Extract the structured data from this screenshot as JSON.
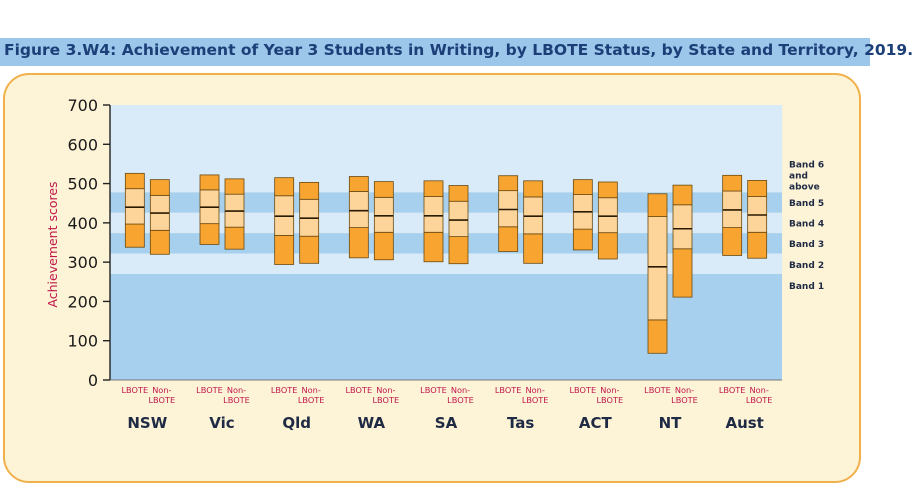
{
  "title": "Figure 3.W4: Achievement of Year 3 Students in Writing, by LBOTE Status, by State and Territory, 2019.",
  "colors": {
    "title_bar": "#9cc6ea",
    "title_text": "#1c3f78",
    "panel_bg": "#fdf3d6",
    "panel_border": "#f0b14a",
    "band_light": "#d9ebf8",
    "band_dark": "#a6d0ee",
    "box_dark": "#f7a431",
    "box_light": "#fdd49a",
    "box_edge": "#6b4a10",
    "group_label": "#1f2a44",
    "lbote_label": "#c0154a",
    "ylabel_color": "#c0154a"
  },
  "chart_data": {
    "type": "box",
    "title": "Figure 3.W4: Achievement of Year 3 Students in Writing, by LBOTE Status, by State and Territory, 2019.",
    "ylabel": "Achievement scores",
    "ylim": [
      0,
      700
    ],
    "yticks": [
      0,
      100,
      200,
      300,
      400,
      500,
      600,
      700
    ],
    "bands": [
      {
        "label": "Band 1",
        "from": 0,
        "to": 270,
        "shade": "dark"
      },
      {
        "label": "Band 2",
        "from": 270,
        "to": 322,
        "shade": "light"
      },
      {
        "label": "Band 3",
        "from": 322,
        "to": 374,
        "shade": "dark"
      },
      {
        "label": "Band 4",
        "from": 374,
        "to": 426,
        "shade": "light"
      },
      {
        "label": "Band 5",
        "from": 426,
        "to": 478,
        "shade": "dark"
      },
      {
        "label": "Band 6 and above",
        "from": 478,
        "to": 700,
        "shade": "light"
      }
    ],
    "band_labels": [
      {
        "lines": [
          "Band 6",
          "and",
          "above"
        ],
        "value": 522
      },
      {
        "lines": [
          "Band 5"
        ],
        "value": 452
      },
      {
        "lines": [
          "Band 4"
        ],
        "value": 400
      },
      {
        "lines": [
          "Band 3"
        ],
        "value": 348
      },
      {
        "lines": [
          "Band 2"
        ],
        "value": 294
      },
      {
        "lines": [
          "Band 1"
        ],
        "value": 241
      }
    ],
    "series_labels": {
      "lbote": [
        "LBOTE"
      ],
      "non_lbote": [
        "Non-",
        "LBOTE"
      ]
    },
    "groups": [
      {
        "name": "NSW",
        "lbote": {
          "p10": 338,
          "p25": 397,
          "median": 440,
          "p75": 487,
          "p90": 526
        },
        "non_lbote": {
          "p10": 320,
          "p25": 381,
          "median": 425,
          "p75": 470,
          "p90": 510
        }
      },
      {
        "name": "Vic",
        "lbote": {
          "p10": 345,
          "p25": 398,
          "median": 440,
          "p75": 484,
          "p90": 522
        },
        "non_lbote": {
          "p10": 333,
          "p25": 389,
          "median": 430,
          "p75": 473,
          "p90": 512
        }
      },
      {
        "name": "Qld",
        "lbote": {
          "p10": 294,
          "p25": 368,
          "median": 417,
          "p75": 469,
          "p90": 515
        },
        "non_lbote": {
          "p10": 297,
          "p25": 366,
          "median": 412,
          "p75": 460,
          "p90": 503
        }
      },
      {
        "name": "WA",
        "lbote": {
          "p10": 311,
          "p25": 388,
          "median": 431,
          "p75": 480,
          "p90": 518
        },
        "non_lbote": {
          "p10": 306,
          "p25": 376,
          "median": 418,
          "p75": 465,
          "p90": 505
        }
      },
      {
        "name": "SA",
        "lbote": {
          "p10": 301,
          "p25": 376,
          "median": 418,
          "p75": 467,
          "p90": 507
        },
        "non_lbote": {
          "p10": 296,
          "p25": 365,
          "median": 407,
          "p75": 455,
          "p90": 495
        }
      },
      {
        "name": "Tas",
        "lbote": {
          "p10": 327,
          "p25": 390,
          "median": 434,
          "p75": 482,
          "p90": 520
        },
        "non_lbote": {
          "p10": 297,
          "p25": 372,
          "median": 417,
          "p75": 466,
          "p90": 507
        }
      },
      {
        "name": "ACT",
        "lbote": {
          "p10": 331,
          "p25": 384,
          "median": 428,
          "p75": 472,
          "p90": 510
        },
        "non_lbote": {
          "p10": 308,
          "p25": 375,
          "median": 417,
          "p75": 464,
          "p90": 504
        }
      },
      {
        "name": "NT",
        "lbote": {
          "p10": 68,
          "p25": 153,
          "median": 288,
          "p75": 416,
          "p90": 474
        },
        "non_lbote": {
          "p10": 211,
          "p25": 334,
          "median": 385,
          "p75": 446,
          "p90": 496
        }
      },
      {
        "name": "Aust",
        "lbote": {
          "p10": 317,
          "p25": 388,
          "median": 433,
          "p75": 481,
          "p90": 521
        },
        "non_lbote": {
          "p10": 310,
          "p25": 376,
          "median": 420,
          "p75": 467,
          "p90": 508
        }
      }
    ]
  }
}
